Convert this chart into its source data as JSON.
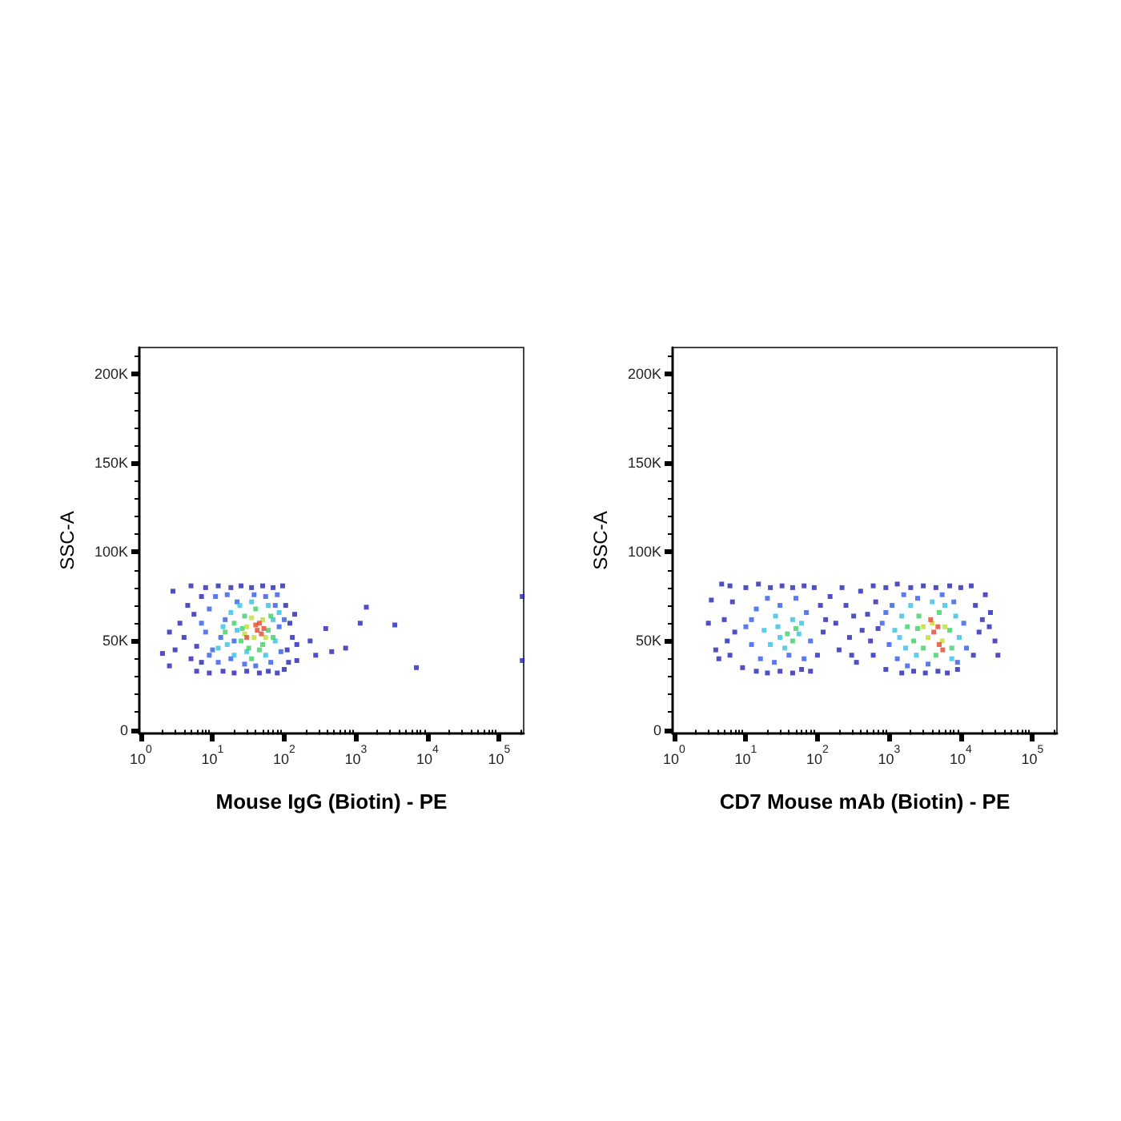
{
  "chart_data": [
    {
      "type": "scatter",
      "xlabel": "Mouse IgG (Biotin) - PE",
      "ylabel": "SSC-A",
      "log": "x",
      "marker": "square",
      "xlim": [
        0.95,
        220000
      ],
      "ylim": [
        -2000,
        215000
      ],
      "xticks": [
        {
          "value": 1,
          "label": "10$^{0}$"
        },
        {
          "value": 2,
          "label": null
        },
        {
          "value": 3,
          "label": null
        },
        {
          "value": 4,
          "label": null
        },
        {
          "value": 5,
          "label": null
        },
        {
          "value": 6,
          "label": null
        },
        {
          "value": 7,
          "label": null
        },
        {
          "value": 8,
          "label": null
        },
        {
          "value": 9,
          "label": null
        },
        {
          "value": 10,
          "label": "10$^{1}$"
        },
        {
          "value": 20,
          "label": null
        },
        {
          "value": 30,
          "label": null
        },
        {
          "value": 40,
          "label": null
        },
        {
          "value": 50,
          "label": null
        },
        {
          "value": 60,
          "label": null
        },
        {
          "value": 70,
          "label": null
        },
        {
          "value": 80,
          "label": null
        },
        {
          "value": 90,
          "label": null
        },
        {
          "value": 100,
          "label": "10$^{2}$"
        },
        {
          "value": 200,
          "label": null
        },
        {
          "value": 300,
          "label": null
        },
        {
          "value": 400,
          "label": null
        },
        {
          "value": 500,
          "label": null
        },
        {
          "value": 600,
          "label": null
        },
        {
          "value": 700,
          "label": null
        },
        {
          "value": 800,
          "label": null
        },
        {
          "value": 900,
          "label": null
        },
        {
          "value": 1000,
          "label": "10$^{3}$"
        },
        {
          "value": 2000,
          "label": null
        },
        {
          "value": 3000,
          "label": null
        },
        {
          "value": 4000,
          "label": null
        },
        {
          "value": 5000,
          "label": null
        },
        {
          "value": 6000,
          "label": null
        },
        {
          "value": 7000,
          "label": null
        },
        {
          "value": 8000,
          "label": null
        },
        {
          "value": 9000,
          "label": null
        },
        {
          "value": 10000,
          "label": "10$^{4}$"
        },
        {
          "value": 20000,
          "label": null
        },
        {
          "value": 30000,
          "label": null
        },
        {
          "value": 40000,
          "label": null
        },
        {
          "value": 50000,
          "label": null
        },
        {
          "value": 60000,
          "label": null
        },
        {
          "value": 70000,
          "label": null
        },
        {
          "value": 80000,
          "label": null
        },
        {
          "value": 90000,
          "label": null
        },
        {
          "value": 100000,
          "label": "10$^{5}$"
        },
        {
          "value": 200000,
          "label": null
        }
      ],
      "yticks": [
        0,
        {
          "value": 10000,
          "label": null
        },
        {
          "value": 20000,
          "label": null
        },
        {
          "value": 30000,
          "label": null
        },
        {
          "value": 40000,
          "label": null
        },
        {
          "value": 50000,
          "label": "50K"
        },
        {
          "value": 60000,
          "label": null
        },
        {
          "value": 70000,
          "label": null
        },
        {
          "value": 80000,
          "label": null
        },
        {
          "value": 90000,
          "label": null
        },
        {
          "value": 100000,
          "label": "100K"
        },
        {
          "value": 110000,
          "label": null
        },
        {
          "value": 120000,
          "label": null
        },
        {
          "value": 130000,
          "label": null
        },
        {
          "value": 140000,
          "label": null
        },
        {
          "value": 150000,
          "label": "150K"
        },
        {
          "value": 160000,
          "label": null
        },
        {
          "value": 170000,
          "label": null
        },
        {
          "value": 180000,
          "label": null
        },
        {
          "value": 190000,
          "label": null
        },
        {
          "value": 200000,
          "label": "200K"
        },
        {
          "value": 210000,
          "label": null
        }
      ],
      "series": [
        {
          "color": "#2323b4",
          "x": [
            5,
            8,
            12,
            18,
            25,
            35,
            50,
            70,
            95,
            6,
            9,
            14,
            20,
            30,
            45,
            60,
            80,
            100,
            3,
            3.5,
            4,
            4.5,
            5,
            5.5,
            6,
            7,
            7,
            110,
            120,
            105,
            130,
            115,
            140,
            150,
            2,
            2.5,
            2.8,
            2.5,
            380,
            1150,
            1400,
            3500,
            7000,
            720,
            460,
            230,
            275,
            150,
            210000,
            210000
          ],
          "values": [
            81000,
            80000,
            81000,
            80000,
            81000,
            80000,
            81000,
            80000,
            81000,
            33000,
            32000,
            33000,
            32000,
            33000,
            32000,
            33000,
            32000,
            34000,
            45000,
            60000,
            52000,
            70000,
            40000,
            65000,
            47000,
            75000,
            38000,
            45000,
            60000,
            70000,
            52000,
            38000,
            65000,
            48000,
            43000,
            55000,
            78000,
            36000,
            57000,
            60000,
            69000,
            59000,
            35000,
            46000,
            44000,
            50000,
            42000,
            39000,
            75000,
            39000
          ]
        },
        {
          "color": "#2f5ae6",
          "x": [
            8,
            9,
            10,
            11,
            12,
            15,
            16,
            18,
            22,
            28,
            38,
            55,
            75,
            85,
            90,
            65,
            40,
            20,
            13,
            100,
            80,
            7,
            9
          ],
          "values": [
            55000,
            68000,
            45000,
            75000,
            38000,
            62000,
            76000,
            40000,
            72000,
            37000,
            76000,
            75000,
            70000,
            58000,
            44000,
            38000,
            36000,
            50000,
            52000,
            62000,
            76000,
            60000,
            42000
          ]
        },
        {
          "color": "#34bfe6",
          "x": [
            14,
            16,
            18,
            20,
            24,
            30,
            60,
            70,
            75,
            55,
            35,
            22,
            85,
            12
          ],
          "values": [
            58000,
            48000,
            66000,
            42000,
            70000,
            44000,
            70000,
            62000,
            50000,
            42000,
            72000,
            56000,
            66000,
            46000
          ]
        },
        {
          "color": "#3ccf64",
          "x": [
            20,
            25,
            28,
            32,
            40,
            50,
            60,
            65,
            45,
            26,
            15,
            70,
            35
          ],
          "values": [
            60000,
            50000,
            64000,
            46000,
            68000,
            48000,
            56000,
            64000,
            45000,
            57000,
            55000,
            52000,
            40000
          ]
        },
        {
          "color": "#c2dc34",
          "x": [
            30,
            38,
            50,
            55,
            35,
            28
          ],
          "values": [
            58000,
            52000,
            62000,
            52000,
            63000,
            54000
          ]
        },
        {
          "color": "#e3452a",
          "x": [
            42,
            48,
            40,
            52,
            30,
            45
          ],
          "values": [
            56000,
            54000,
            59000,
            57000,
            52000,
            60000
          ]
        }
      ]
    },
    {
      "type": "scatter",
      "xlabel": "CD7 Mouse mAb (Biotin) - PE",
      "ylabel": "SSC-A",
      "log": "x",
      "marker": "square",
      "xlim": [
        0.95,
        220000
      ],
      "ylim": [
        -2000,
        215000
      ],
      "xticks": [
        {
          "value": 1,
          "label": "10$^{0}$"
        },
        {
          "value": 2,
          "label": null
        },
        {
          "value": 3,
          "label": null
        },
        {
          "value": 4,
          "label": null
        },
        {
          "value": 5,
          "label": null
        },
        {
          "value": 6,
          "label": null
        },
        {
          "value": 7,
          "label": null
        },
        {
          "value": 8,
          "label": null
        },
        {
          "value": 9,
          "label": null
        },
        {
          "value": 10,
          "label": "10$^{1}$"
        },
        {
          "value": 20,
          "label": null
        },
        {
          "value": 30,
          "label": null
        },
        {
          "value": 40,
          "label": null
        },
        {
          "value": 50,
          "label": null
        },
        {
          "value": 60,
          "label": null
        },
        {
          "value": 70,
          "label": null
        },
        {
          "value": 80,
          "label": null
        },
        {
          "value": 90,
          "label": null
        },
        {
          "value": 100,
          "label": "10$^{2}$"
        },
        {
          "value": 200,
          "label": null
        },
        {
          "value": 300,
          "label": null
        },
        {
          "value": 400,
          "label": null
        },
        {
          "value": 500,
          "label": null
        },
        {
          "value": 600,
          "label": null
        },
        {
          "value": 700,
          "label": null
        },
        {
          "value": 800,
          "label": null
        },
        {
          "value": 900,
          "label": null
        },
        {
          "value": 1000,
          "label": "10$^{3}$"
        },
        {
          "value": 2000,
          "label": null
        },
        {
          "value": 3000,
          "label": null
        },
        {
          "value": 4000,
          "label": null
        },
        {
          "value": 5000,
          "label": null
        },
        {
          "value": 6000,
          "label": null
        },
        {
          "value": 7000,
          "label": null
        },
        {
          "value": 8000,
          "label": null
        },
        {
          "value": 9000,
          "label": null
        },
        {
          "value": 10000,
          "label": "10$^{4}$"
        },
        {
          "value": 20000,
          "label": null
        },
        {
          "value": 30000,
          "label": null
        },
        {
          "value": 40000,
          "label": null
        },
        {
          "value": 50000,
          "label": null
        },
        {
          "value": 60000,
          "label": null
        },
        {
          "value": 70000,
          "label": null
        },
        {
          "value": 80000,
          "label": null
        },
        {
          "value": 90000,
          "label": null
        },
        {
          "value": 100000,
          "label": "10$^{5}$"
        },
        {
          "value": 200000,
          "label": null
        }
      ],
      "yticks": [
        0,
        {
          "value": 10000,
          "label": null
        },
        {
          "value": 20000,
          "label": null
        },
        {
          "value": 30000,
          "label": null
        },
        {
          "value": 40000,
          "label": null
        },
        {
          "value": 50000,
          "label": "50K"
        },
        {
          "value": 60000,
          "label": null
        },
        {
          "value": 70000,
          "label": null
        },
        {
          "value": 80000,
          "label": null
        },
        {
          "value": 90000,
          "label": null
        },
        {
          "value": 100000,
          "label": "100K"
        },
        {
          "value": 110000,
          "label": null
        },
        {
          "value": 120000,
          "label": null
        },
        {
          "value": 130000,
          "label": null
        },
        {
          "value": 140000,
          "label": null
        },
        {
          "value": 150000,
          "label": "150K"
        },
        {
          "value": 160000,
          "label": null
        },
        {
          "value": 170000,
          "label": null
        },
        {
          "value": 180000,
          "label": null
        },
        {
          "value": 190000,
          "label": null
        },
        {
          "value": 200000,
          "label": "200K"
        },
        {
          "value": 210000,
          "label": null
        }
      ],
      "series": [
        {
          "color": "#2323b4",
          "x": [
            6,
            10,
            15,
            22,
            32,
            45,
            65,
            90,
            9,
            14,
            20,
            30,
            45,
            60,
            80,
            5,
            5.5,
            6,
            6.5,
            7,
            110,
            120,
            100,
            130,
            3,
            3.3,
            4.6,
            3.8,
            4.2,
            150,
            180,
            200,
            250,
            280,
            320,
            350,
            400,
            420,
            220,
            300,
            600,
            900,
            1300,
            2000,
            3000,
            4500,
            7000,
            10000,
            14000,
            900,
            1500,
            2200,
            3200,
            4800,
            6500,
            9000,
            500,
            550,
            600,
            650,
            700,
            16000,
            18000,
            15000,
            20000,
            22000,
            26000,
            30000,
            33000,
            25000
          ],
          "values": [
            81000,
            80000,
            82000,
            80000,
            81000,
            80000,
            81000,
            80000,
            35000,
            33000,
            32000,
            33000,
            32000,
            34000,
            33000,
            62000,
            50000,
            42000,
            72000,
            55000,
            70000,
            55000,
            42000,
            62000,
            60000,
            73000,
            82000,
            45000,
            40000,
            75000,
            60000,
            45000,
            70000,
            52000,
            64000,
            38000,
            78000,
            56000,
            80000,
            42000,
            81000,
            80000,
            82000,
            80000,
            81000,
            80000,
            81000,
            80000,
            81000,
            34000,
            32000,
            33000,
            32000,
            33000,
            32000,
            34000,
            65000,
            50000,
            42000,
            72000,
            57000,
            70000,
            55000,
            42000,
            62000,
            76000,
            66000,
            50000,
            42000,
            58000
          ]
        },
        {
          "color": "#2f5ae6",
          "x": [
            10,
            12,
            14,
            16,
            20,
            25,
            30,
            40,
            50,
            70,
            80,
            65,
            12,
            800,
            1000,
            1100,
            1300,
            1600,
            1800,
            2500,
            3500,
            5500,
            8000,
            11000,
            12000,
            9000,
            900
          ],
          "values": [
            58000,
            48000,
            68000,
            40000,
            74000,
            38000,
            70000,
            42000,
            74000,
            66000,
            50000,
            40000,
            62000,
            60000,
            48000,
            70000,
            40000,
            76000,
            36000,
            74000,
            37000,
            76000,
            72000,
            60000,
            46000,
            38000,
            66000
          ]
        },
        {
          "color": "#34bfe6",
          "x": [
            18,
            22,
            26,
            30,
            35,
            45,
            55,
            60,
            28,
            1200,
            1500,
            1700,
            2000,
            2400,
            6000,
            8500,
            9500,
            7500,
            4000,
            1400
          ],
          "values": [
            56000,
            48000,
            64000,
            52000,
            46000,
            62000,
            54000,
            60000,
            58000,
            56000,
            64000,
            46000,
            70000,
            42000,
            70000,
            64000,
            52000,
            40000,
            72000,
            52000
          ]
        },
        {
          "color": "#3ccf64",
          "x": [
            38,
            45,
            50,
            1800,
            2200,
            2600,
            3000,
            5000,
            7000,
            7500,
            4500,
            2500
          ],
          "values": [
            54000,
            50000,
            57000,
            58000,
            50000,
            64000,
            46000,
            66000,
            56000,
            46000,
            42000,
            57000
          ]
        },
        {
          "color": "#c2dc34",
          "x": [
            3000,
            4000,
            5500,
            6000,
            3500
          ],
          "values": [
            58000,
            60000,
            50000,
            58000,
            52000
          ]
        },
        {
          "color": "#e3452a",
          "x": [
            4200,
            5000,
            4800,
            3800,
            5600
          ],
          "values": [
            55000,
            48000,
            58000,
            62000,
            45000
          ]
        }
      ]
    }
  ]
}
